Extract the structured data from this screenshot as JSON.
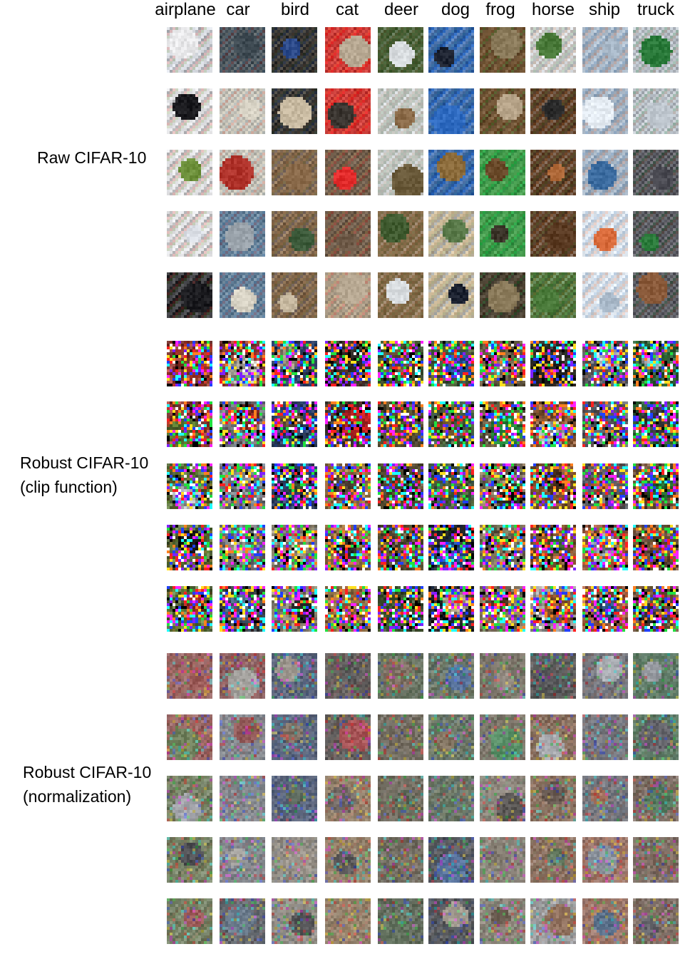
{
  "figure": {
    "classes": [
      "airplane",
      "car",
      "bird",
      "cat",
      "deer",
      "dog",
      "frog",
      "horse",
      "ship",
      "truck"
    ],
    "sections": [
      {
        "key": "raw",
        "label_lines": [
          "Raw CIFAR-10"
        ],
        "style": "natural"
      },
      {
        "key": "clip",
        "label_lines": [
          "Robust CIFAR-10",
          "(clip function)"
        ],
        "style": "saturated-noise"
      },
      {
        "key": "norm",
        "label_lines": [
          "Robust CIFAR-10",
          "(normalization)"
        ],
        "style": "muted-texture"
      }
    ],
    "rows_per_section": 5,
    "class_palettes": {
      "airplane": [
        "#e8e8ea",
        "#1b1b1f",
        "#c93a2e",
        "#6c8f3a",
        "#d9dde4"
      ],
      "car": [
        "#5c7f9e",
        "#b0332b",
        "#9aa3ab",
        "#3e4a52",
        "#d7d2c4"
      ],
      "bird": [
        "#3c5a3a",
        "#2c4a8a",
        "#c7b9a0",
        "#2a2a2a",
        "#8a6a4a"
      ],
      "cat": [
        "#3a3530",
        "#c89a5a",
        "#e12a2a",
        "#6e5a48",
        "#b7a892"
      ],
      "deer": [
        "#6a5a3a",
        "#3f5a2f",
        "#d9dde0",
        "#8a6a48",
        "#4a6a3a"
      ],
      "dog": [
        "#1c2230",
        "#2e6ac0",
        "#d8c7a8",
        "#8a6a3a",
        "#5a7a4a"
      ],
      "frog": [
        "#6a4a2a",
        "#2fa84a",
        "#3a3328",
        "#8a7a5a",
        "#b8a58a"
      ],
      "horse": [
        "#5a3a22",
        "#4a7a3a",
        "#2a2a2a",
        "#b06a3a",
        "#e0e4e8"
      ],
      "ship": [
        "#e6edf4",
        "#3a6a9e",
        "#6a6a72",
        "#d86a3a",
        "#a8b8c8"
      ],
      "truck": [
        "#e8e8e8",
        "#2a7a3a",
        "#8a5a3a",
        "#c0c8d0",
        "#4a4a52"
      ]
    }
  }
}
